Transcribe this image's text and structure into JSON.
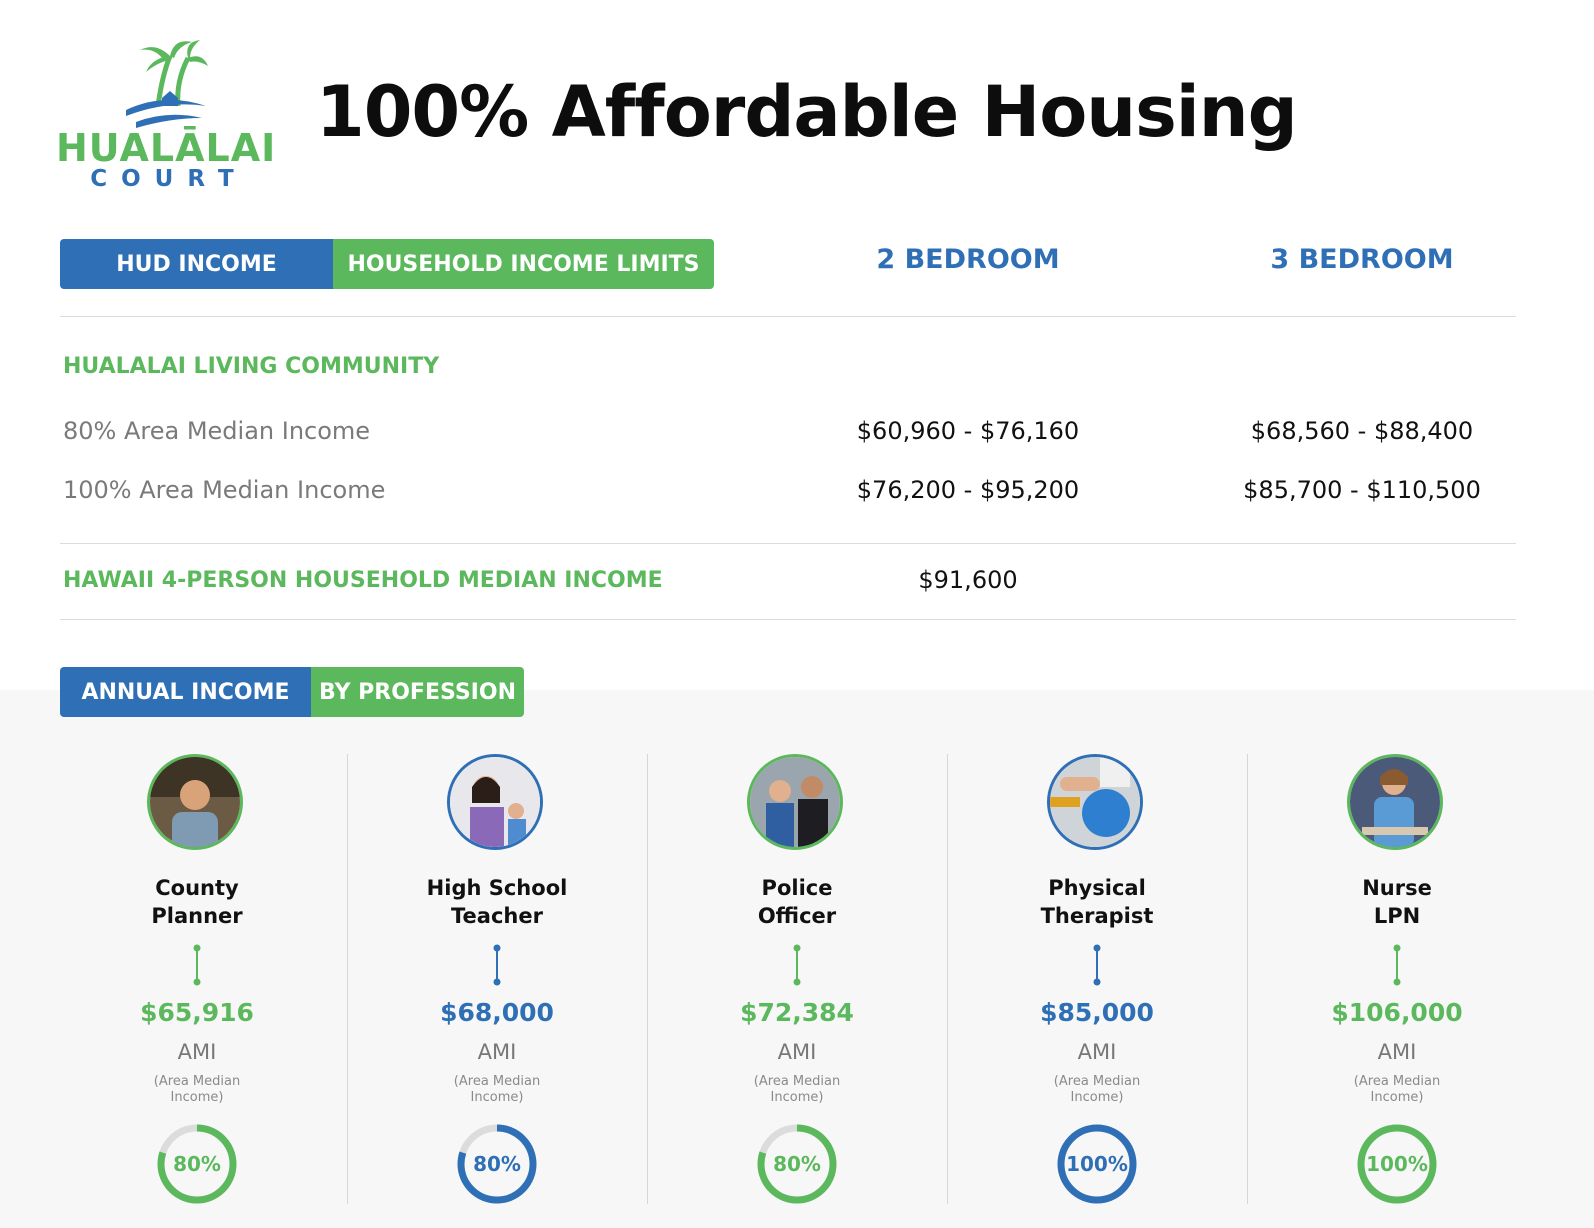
{
  "brand": {
    "logo_word": "HUALĀLAI",
    "logo_sub": "COURT",
    "green": "#5cb85c",
    "blue": "#2f6fb5"
  },
  "title": "100% Affordable Housing",
  "income_tabs": {
    "left": "HUD INCOME",
    "right": "HOUSEHOLD INCOME LIMITS"
  },
  "columns": {
    "two_bed": "2 BEDROOM",
    "three_bed": "3 BEDROOM"
  },
  "community": {
    "heading": "HUALALAI LIVING COMMUNITY",
    "rows": [
      {
        "label": "80% Area Median Income",
        "two_bed": "$60,960 - $76,160",
        "three_bed": "$68,560 - $88,400"
      },
      {
        "label": "100% Area Median Income",
        "two_bed": "$76,200 - $95,200",
        "three_bed": "$85,700 - $110,500"
      }
    ]
  },
  "hawaii": {
    "label": "HAWAII 4-PERSON HOUSEHOLD MEDIAN INCOME",
    "value": "$91,600"
  },
  "profession_tabs": {
    "left": "ANNUAL INCOME",
    "right": "BY PROFESSION"
  },
  "professions": [
    {
      "line1": "County",
      "line2": "Planner",
      "salary": "$65,916",
      "ami": "AMI",
      "ami_note": "(Area Median Income)",
      "percent_label": "80%",
      "percent": 80,
      "color": "#5cb85c"
    },
    {
      "line1": "High School",
      "line2": "Teacher",
      "salary": "$68,000",
      "ami": "AMI",
      "ami_note": "(Area Median Income)",
      "percent_label": "80%",
      "percent": 80,
      "color": "#2f6fb5"
    },
    {
      "line1": "Police",
      "line2": "Officer",
      "salary": "$72,384",
      "ami": "AMI",
      "ami_note": "(Area Median Income)",
      "percent_label": "80%",
      "percent": 80,
      "color": "#5cb85c"
    },
    {
      "line1": "Physical",
      "line2": "Therapist",
      "salary": "$85,000",
      "ami": "AMI",
      "ami_note": "(Area Median Income)",
      "percent_label": "100%",
      "percent": 100,
      "color": "#2f6fb5"
    },
    {
      "line1": "Nurse",
      "line2": "LPN",
      "salary": "$106,000",
      "ami": "AMI",
      "ami_note": "(Area Median Income)",
      "percent_label": "100%",
      "percent": 100,
      "color": "#5cb85c"
    }
  ]
}
